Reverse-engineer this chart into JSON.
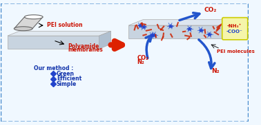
{
  "bg_color": "#f0f8ff",
  "border_color": "#4488cc",
  "title": "",
  "membrane_color": "#c8d8e8",
  "membrane_edge_color": "#a0b8c8",
  "arrow_red_color": "#dd2200",
  "arrow_blue_color": "#2255cc",
  "co2_n2_color": "#cc1100",
  "pei_label_color": "#cc1100",
  "label_color": "#000000",
  "blue_label_color": "#1133aa",
  "our_method_text": "Our method :",
  "bullet_color": "#2244cc",
  "items": [
    "Green",
    "Efficient",
    "Simple"
  ],
  "pei_solution_label": "PEI solution",
  "polyamide_label": [
    "Polyamide",
    "membranes"
  ],
  "co2_n2_input": "CO₂\nN₂",
  "n2_label": "N₂",
  "co2_output": "CO₂",
  "pei_molecules_label": "PEI molecules",
  "nh_coo_label": "-NH₃⁺\n-COO⁻",
  "yellow_box_color": "#dddd00",
  "membrane_face_color": "#d0dce8",
  "membrane_top_color": "#e8eff5",
  "membrane_side_color": "#b0c4d4"
}
